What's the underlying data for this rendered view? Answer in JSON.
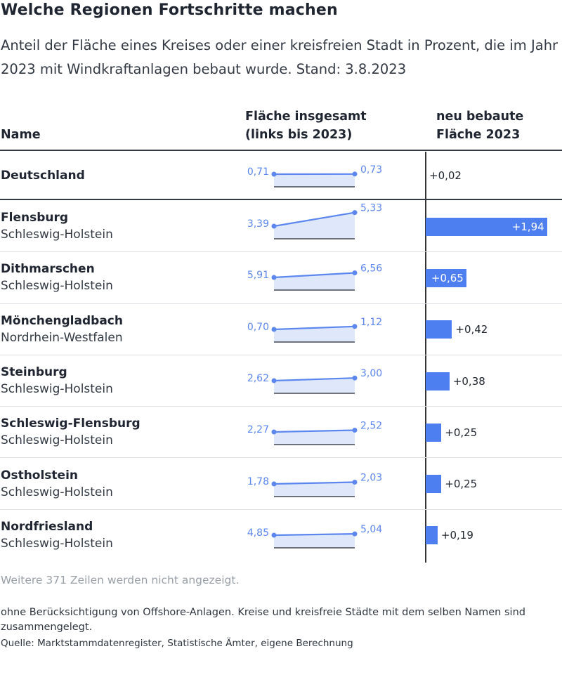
{
  "title": "Welche Regionen Fortschritte machen",
  "subtitle": "Anteil der Fläche eines Kreises oder einer kreisfreien Stadt in Prozent, die im Jahr 2023 mit Windkraftanlagen bebaut wurde. Stand: 3.8.2023",
  "headers": {
    "name": "Name",
    "total_line1": "Fläche insgesamt",
    "total_line2": "(links bis 2023)",
    "new_line1": "neu bebaute",
    "new_line2": "Fläche 2023"
  },
  "colors": {
    "accent": "#4d7ff0",
    "sparkline": "#5b87ee",
    "spark_fill": "#dfe7fb",
    "text": "#202631",
    "muted": "#9aa0a8"
  },
  "chart_data": {
    "type": "table",
    "columns": [
      "Name",
      "Fläche insgesamt (links bis 2023)",
      "neu bebaute Fläche 2023"
    ],
    "rows": [
      {
        "name": "Deutschland",
        "region": "",
        "start": 0.71,
        "end": 0.73,
        "start_label": "0,71",
        "end_label": "0,73",
        "delta": 0.02,
        "delta_label": "+0,02"
      },
      {
        "name": "Flensburg",
        "region": "Schleswig-Holstein",
        "start": 3.39,
        "end": 5.33,
        "start_label": "3,39",
        "end_label": "5,33",
        "delta": 1.94,
        "delta_label": "+1,94"
      },
      {
        "name": "Dithmarschen",
        "region": "Schleswig-Holstein",
        "start": 5.91,
        "end": 6.56,
        "start_label": "5,91",
        "end_label": "6,56",
        "delta": 0.65,
        "delta_label": "+0,65"
      },
      {
        "name": "Mönchengladbach",
        "region": "Nordrhein-Westfalen",
        "start": 0.7,
        "end": 1.12,
        "start_label": "0,70",
        "end_label": "1,12",
        "delta": 0.42,
        "delta_label": "+0,42"
      },
      {
        "name": "Steinburg",
        "region": "Schleswig-Holstein",
        "start": 2.62,
        "end": 3.0,
        "start_label": "2,62",
        "end_label": "3,00",
        "delta": 0.38,
        "delta_label": "+0,38"
      },
      {
        "name": "Schleswig-Flensburg",
        "region": "Schleswig-Holstein",
        "start": 2.27,
        "end": 2.52,
        "start_label": "2,27",
        "end_label": "2,52",
        "delta": 0.25,
        "delta_label": "+0,25"
      },
      {
        "name": "Ostholstein",
        "region": "Schleswig-Holstein",
        "start": 1.78,
        "end": 2.03,
        "start_label": "1,78",
        "end_label": "2,03",
        "delta": 0.25,
        "delta_label": "+0,25"
      },
      {
        "name": "Nordfriesland",
        "region": "Schleswig-Holstein",
        "start": 4.85,
        "end": 5.04,
        "start_label": "4,85",
        "end_label": "5,04",
        "delta": 0.19,
        "delta_label": "+0,19"
      }
    ]
  },
  "more_rows": "Weitere 371 Zeilen werden nicht angezeigt.",
  "footnote": "ohne Berücksichtigung von Offshore-Anlagen. Kreise und kreisfreie Städte mit dem selben Namen sind zusammengelegt.",
  "source": "Quelle: Marktstammdatenregister, Statistische Ämter, eigene Berechnung"
}
